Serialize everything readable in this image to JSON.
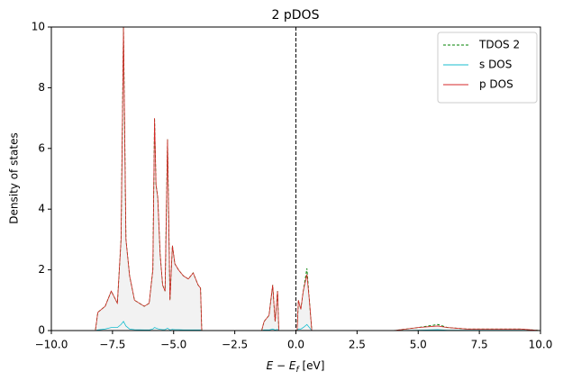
{
  "chart_data": {
    "type": "line",
    "title": "2 pDOS",
    "x_label": {
      "main": "E − E",
      "sub": "f",
      "unit": " [eV]"
    },
    "y_label": "Density of states",
    "x": [
      -10,
      -8.2,
      -8.1,
      -7.8,
      -7.55,
      -7.3,
      -7.15,
      -7.05,
      -6.95,
      -6.8,
      -6.6,
      -6.2,
      -6.0,
      -5.85,
      -5.78,
      -5.72,
      -5.65,
      -5.55,
      -5.45,
      -5.35,
      -5.25,
      -5.15,
      -5.05,
      -4.95,
      -4.8,
      -4.6,
      -4.4,
      -4.2,
      -4.0,
      -3.9,
      -3.85,
      -1.4,
      -1.3,
      -1.1,
      -0.95,
      -0.85,
      -0.75,
      -0.7,
      0.05,
      0.1,
      0.2,
      0.3,
      0.45,
      0.55,
      0.65,
      4.0,
      5.0,
      5.8,
      6.2,
      7.0,
      8.5,
      9.2,
      10
    ],
    "series": [
      {
        "name": "TDOS 2",
        "color": "#008000",
        "dash": true,
        "fill": "#f2f2f2",
        "values": [
          0,
          0,
          0.6,
          0.8,
          1.3,
          0.9,
          3.0,
          10,
          3.0,
          1.8,
          1.0,
          0.8,
          0.9,
          2.0,
          7.0,
          4.8,
          4.4,
          2.5,
          1.5,
          1.3,
          6.3,
          1.0,
          2.8,
          2.2,
          2.0,
          1.8,
          1.7,
          1.9,
          1.5,
          1.4,
          0,
          0,
          0.3,
          0.5,
          1.5,
          0.3,
          1.3,
          0,
          0,
          1.0,
          0.7,
          1.3,
          2.05,
          1.0,
          0,
          0,
          0.1,
          0.2,
          0.1,
          0.05,
          0.05,
          0.05,
          0
        ]
      },
      {
        "name": "s DOS",
        "color": "#17becf",
        "dash": false,
        "values": [
          0,
          0,
          0.02,
          0.05,
          0.1,
          0.1,
          0.2,
          0.3,
          0.15,
          0.05,
          0.03,
          0.02,
          0.02,
          0.05,
          0.1,
          0.08,
          0.06,
          0.04,
          0.03,
          0.03,
          0.08,
          0.02,
          0.04,
          0.03,
          0.03,
          0.02,
          0.02,
          0.02,
          0.02,
          0.02,
          0,
          0,
          0.02,
          0.02,
          0.05,
          0.02,
          0.04,
          0,
          0,
          0.05,
          0.05,
          0.1,
          0.2,
          0.1,
          0,
          0,
          0.01,
          0.03,
          0.01,
          0.01,
          0.01,
          0.01,
          0
        ]
      },
      {
        "name": "p DOS",
        "color": "#d62728",
        "dash": false,
        "values": [
          0,
          0,
          0.6,
          0.8,
          1.3,
          0.9,
          3.0,
          10,
          3.0,
          1.8,
          1.0,
          0.8,
          0.9,
          2.0,
          7.0,
          4.8,
          4.4,
          2.5,
          1.5,
          1.3,
          6.3,
          1.0,
          2.8,
          2.2,
          2.0,
          1.8,
          1.7,
          1.9,
          1.5,
          1.4,
          0,
          0,
          0.3,
          0.5,
          1.5,
          0.3,
          1.3,
          0,
          0,
          1.0,
          0.7,
          1.3,
          1.85,
          1.0,
          0,
          0,
          0.1,
          0.15,
          0.1,
          0.05,
          0.05,
          0.05,
          0
        ]
      }
    ],
    "xlim": [
      -10,
      10
    ],
    "xticks": [
      {
        "value": -10,
        "label": "−10.0"
      },
      {
        "value": -7.5,
        "label": "−7.5"
      },
      {
        "value": -5,
        "label": "−5.0"
      },
      {
        "value": -2.5,
        "label": "−2.5"
      },
      {
        "value": 0,
        "label": "0.0"
      },
      {
        "value": 2.5,
        "label": "2.5"
      },
      {
        "value": 5,
        "label": "5.0"
      },
      {
        "value": 7.5,
        "label": "7.5"
      },
      {
        "value": 10,
        "label": "10.0"
      }
    ],
    "ylim": [
      0,
      10
    ],
    "yticks": [
      0,
      2,
      4,
      6,
      8,
      10
    ],
    "vline": 0,
    "legend": "upper-right",
    "grid": false
  }
}
